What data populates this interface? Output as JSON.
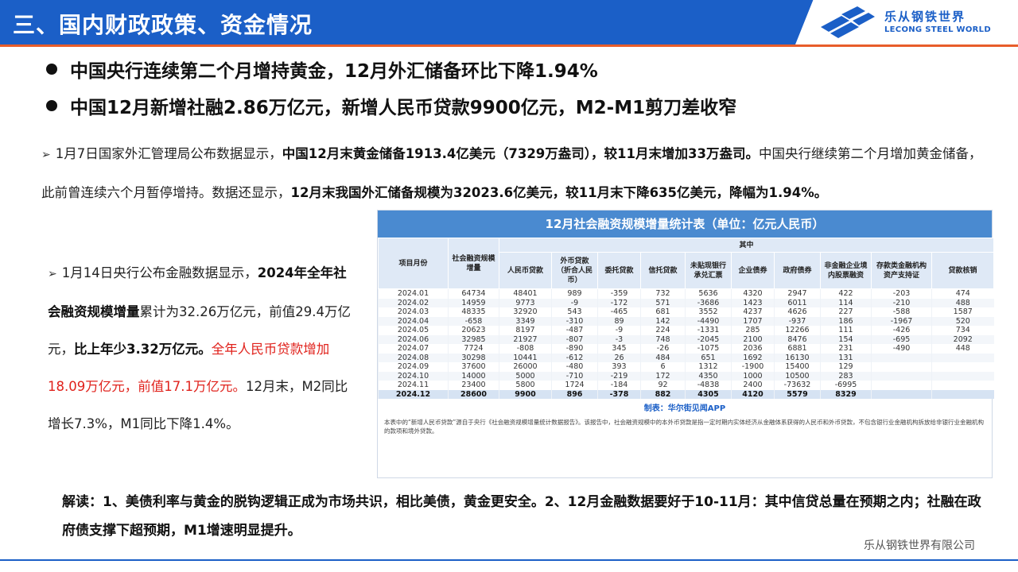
{
  "header": {
    "title": "三、国内财政政策、资金情况",
    "logo_cn": "乐从钢铁世界",
    "logo_en": "LECONG STEEL WORLD"
  },
  "headlines": [
    "中国央行连续第二个月增持黄金，12月外汇储备环比下降1.94%",
    "中国12月新增社融2.86万亿元，新增人民币贷款9900亿元，M2-M1剪刀差收窄"
  ],
  "para1": {
    "t1": "1月7日国家外汇管理局公布数据显示，",
    "b1": "中国12月末黄金储备1913.4亿美元（7329万盎司），较11月末增加33万盎司。",
    "t2": "中国央行继续第二个月增加黄金储备，此前曾连续六个月暂停增持。数据还显示，",
    "b2": "12月末我国外汇储备规模为32023.6亿美元，较11月末下降635亿美元，降幅为1.94%。"
  },
  "para2": {
    "t1": "1月14日央行公布金融数据显示，",
    "b1": "2024年全年社会融资规模增量",
    "t2": "累计为32.26万亿元，前值29.4万亿元，",
    "b2": "比上年少3.32万亿元。",
    "r1": "全年人民币贷款增加18.09万亿元，前值17.1万亿元。",
    "t3": "12月末，M2同比增长7.3%，M1同比下降1.4%。"
  },
  "table": {
    "title": "12月社会融资规模增量统计表（单位：亿元人民币）",
    "group_label": "其中",
    "headers": [
      "项目月份",
      "社会融资规模增量",
      "人民币贷款",
      "外币贷款（折合人民币）",
      "委托贷款",
      "信托贷款",
      "未贴现银行承兑汇票",
      "企业债券",
      "政府债券",
      "非金融企业境内股票融资",
      "存款类金融机构资产支持证",
      "贷款核销"
    ],
    "rows": [
      [
        "2024.01",
        "64734",
        "48401",
        "989",
        "-359",
        "732",
        "5636",
        "4320",
        "2947",
        "422",
        "-203",
        "474"
      ],
      [
        "2024.02",
        "14959",
        "9773",
        "-9",
        "-172",
        "571",
        "-3686",
        "1423",
        "6011",
        "114",
        "-210",
        "488"
      ],
      [
        "2024.03",
        "48335",
        "32920",
        "543",
        "-465",
        "681",
        "3552",
        "4237",
        "4626",
        "227",
        "-588",
        "1587"
      ],
      [
        "2024.04",
        "-658",
        "3349",
        "-310",
        "89",
        "142",
        "-4490",
        "1707",
        "-937",
        "186",
        "-1967",
        "520"
      ],
      [
        "2024.05",
        "20623",
        "8197",
        "-487",
        "-9",
        "224",
        "-1331",
        "285",
        "12266",
        "111",
        "-426",
        "734"
      ],
      [
        "2024.06",
        "32985",
        "21927",
        "-807",
        "-3",
        "748",
        "-2045",
        "2100",
        "8476",
        "154",
        "-695",
        "2092"
      ],
      [
        "2024.07",
        "7724",
        "-808",
        "-890",
        "345",
        "-26",
        "-1075",
        "2036",
        "6881",
        "231",
        "-490",
        "448"
      ],
      [
        "2024.08",
        "30298",
        "10441",
        "-612",
        "26",
        "484",
        "651",
        "1692",
        "16130",
        "131",
        "",
        ""
      ],
      [
        "2024.09",
        "37600",
        "26000",
        "-480",
        "393",
        "6",
        "1312",
        "-1900",
        "15400",
        "129",
        "",
        ""
      ],
      [
        "2024.10",
        "14000",
        "5000",
        "-710",
        "-219",
        "172",
        "4350",
        "1000",
        "10500",
        "283",
        "",
        ""
      ],
      [
        "2024.11",
        "23400",
        "5800",
        "1724",
        "-184",
        "92",
        "-4838",
        "2400",
        "-73632",
        "-6995",
        "",
        ""
      ],
      [
        "2024.12",
        "28600",
        "9900",
        "896",
        "-378",
        "882",
        "4305",
        "4120",
        "5579",
        "8329",
        "",
        ""
      ]
    ],
    "credit": "制表：华尔街见闻APP",
    "note": "本表中的“新增人民币贷款”源自于央行《社会融资规模增量统计数据报告》。该报告中，社会融资规模中的本外币贷款是指一定时期内实体经济从金融体系获得的人民币和外币贷款，不包含银行业金融机构拆放给非银行业金融机构的款项和境外贷款。"
  },
  "interpretation": "解读：1、美债利率与黄金的脱钩逻辑正成为市场共识，相比美债，黄金更安全。2、12月金融数据要好于10-11月：其中信贷总量在预期之内；社融在政府债支撑下超预期，M1增速明显提升。",
  "footer": {
    "company": "乐从钢铁世界有限公司"
  }
}
